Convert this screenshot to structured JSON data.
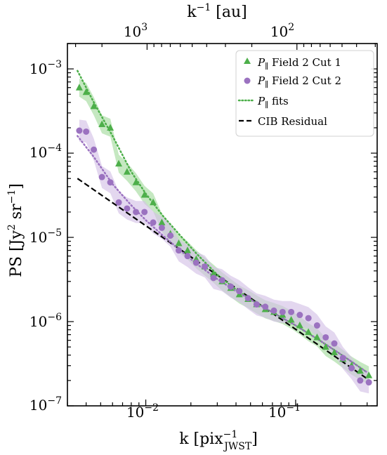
{
  "chart_data": {
    "type": "scatter",
    "x_scale": "log",
    "y_scale": "log",
    "xlim": [
      0.003,
      0.35
    ],
    "ylim": [
      1e-07,
      0.002
    ],
    "xlabel_main": "k [pix",
    "xlabel_sup": "−1",
    "xlabel_sub": "JWST",
    "xlabel_close": "]",
    "top_xlabel_main": "k",
    "top_xlabel_sup": "−1",
    "top_xlabel_rest": " [au]",
    "ylabel_main": "PS [Jy",
    "ylabel_sup1": "2",
    "ylabel_mid": " sr",
    "ylabel_sup2": "−1",
    "ylabel_close": "]",
    "x_tick_labels": [
      {
        "value": 0.01,
        "base": "10",
        "exp": "−2"
      },
      {
        "value": 0.1,
        "base": "10",
        "exp": "−1"
      }
    ],
    "top_tick_labels": [
      {
        "value": 1000,
        "base": "10",
        "exp": "3"
      },
      {
        "value": 100,
        "base": "10",
        "exp": "2"
      }
    ],
    "top_axis_au_per_pix_inverse": 10.2,
    "y_tick_labels": [
      {
        "value": 1e-07,
        "base": "10",
        "exp": "−7"
      },
      {
        "value": 1e-06,
        "base": "10",
        "exp": "−6"
      },
      {
        "value": 1e-05,
        "base": "10",
        "exp": "−5"
      },
      {
        "value": 0.0001,
        "base": "10",
        "exp": "−4"
      },
      {
        "value": 0.001,
        "base": "10",
        "exp": "−3"
      }
    ],
    "legend": {
      "placement": "top-right",
      "entries": [
        {
          "key": "cut1",
          "symbol": "P",
          "sub": "∥",
          "text": " Field 2 Cut 1",
          "marker": "triangle"
        },
        {
          "key": "cut2",
          "symbol": "P",
          "sub": "∥",
          "text": " Field 2 Cut 2",
          "marker": "circle"
        },
        {
          "key": "fits",
          "symbol": "P",
          "sub": "∥",
          "text": " fits",
          "marker": "dotted-line"
        },
        {
          "key": "cib",
          "symbol": "",
          "sub": "",
          "text": "CIB Residual",
          "marker": "dashed-line"
        }
      ]
    },
    "colors": {
      "cut1": "#4daf4a",
      "cut1_band": "#a6dba0",
      "cut2": "#9b72c0",
      "cut2_band": "#d4c2e6",
      "cib": "#000000"
    },
    "series": [
      {
        "key": "cut1",
        "x": [
          0.0036,
          0.004,
          0.0045,
          0.0051,
          0.0058,
          0.0066,
          0.0075,
          0.0086,
          0.0098,
          0.0112,
          0.0128,
          0.0146,
          0.0166,
          0.019,
          0.0217,
          0.0248,
          0.0283,
          0.0323,
          0.0369,
          0.0421,
          0.0481,
          0.0549,
          0.0627,
          0.0716,
          0.0818,
          0.0934,
          0.1066,
          0.1217,
          0.139,
          0.1587,
          0.1812,
          0.2069,
          0.2362,
          0.2697,
          0.308
        ],
        "y": [
          0.0006,
          0.00053,
          0.00036,
          0.00022,
          0.0002,
          7.5e-05,
          6e-05,
          4.5e-05,
          3.2e-05,
          2.6e-05,
          1.5e-05,
          1.1e-05,
          8.5e-06,
          7e-06,
          5.5e-06,
          4.5e-06,
          3.7e-06,
          3e-06,
          2.5e-06,
          2.1e-06,
          1.85e-06,
          1.6e-06,
          1.4e-06,
          1.3e-06,
          1.2e-06,
          1.05e-06,
          9e-07,
          7.5e-07,
          6.5e-07,
          5e-07,
          4.3e-07,
          3.6e-07,
          3e-07,
          2.6e-07,
          2.3e-07
        ],
        "band_rel": 0.28
      },
      {
        "key": "cut2",
        "x": [
          0.0036,
          0.004,
          0.0045,
          0.0051,
          0.0058,
          0.0066,
          0.0075,
          0.0086,
          0.0098,
          0.0112,
          0.0128,
          0.0146,
          0.0166,
          0.019,
          0.0217,
          0.0248,
          0.0283,
          0.0323,
          0.0369,
          0.0421,
          0.0481,
          0.0549,
          0.0627,
          0.0716,
          0.0818,
          0.0934,
          0.1066,
          0.1217,
          0.139,
          0.1587,
          0.1812,
          0.2069,
          0.2362,
          0.2697,
          0.308
        ],
        "y": [
          0.000185,
          0.00018,
          0.00011,
          5.2e-05,
          4.5e-05,
          2.6e-05,
          2.2e-05,
          2e-05,
          2e-05,
          1.5e-05,
          1.3e-05,
          1.05e-05,
          7e-06,
          6e-06,
          5e-06,
          4.5e-06,
          3.3e-06,
          3.1e-06,
          2.6e-06,
          2.3e-06,
          1.9e-06,
          1.6e-06,
          1.5e-06,
          1.35e-06,
          1.3e-06,
          1.3e-06,
          1.2e-06,
          1.1e-06,
          9e-07,
          6.5e-07,
          5.5e-07,
          3.7e-07,
          2.8e-07,
          2e-07,
          1.9e-07
        ],
        "band_rel": 0.35
      }
    ],
    "fits": [
      {
        "key": "cut1",
        "x": [
          0.0035,
          0.0045,
          0.006,
          0.008,
          0.01,
          0.013,
          0.017,
          0.022,
          0.03,
          0.04,
          0.055,
          0.075,
          0.1,
          0.14,
          0.2,
          0.3
        ],
        "y": [
          0.00095,
          0.0004,
          0.00016,
          6e-05,
          3.3e-05,
          1.8e-05,
          1.05e-05,
          6.3e-06,
          3.6e-06,
          2.4e-06,
          1.65e-06,
          1.2e-06,
          9e-07,
          6.2e-07,
          4.1e-07,
          2.5e-07
        ]
      },
      {
        "key": "cut2",
        "x": [
          0.0035,
          0.0045,
          0.006,
          0.008,
          0.01,
          0.013,
          0.017,
          0.022,
          0.03,
          0.04,
          0.055,
          0.075,
          0.1,
          0.14,
          0.2,
          0.3
        ],
        "y": [
          0.00016,
          9e-05,
          4.3e-05,
          2.4e-05,
          1.6e-05,
          1.05e-05,
          7e-06,
          4.8e-06,
          3.2e-06,
          2.3e-06,
          1.65e-06,
          1.2e-06,
          9e-07,
          6.2e-07,
          4.1e-07,
          2.5e-07
        ]
      }
    ],
    "cib_residual": {
      "x": [
        0.0035,
        0.3
      ],
      "y": [
        5e-05,
        2.1e-07
      ]
    }
  }
}
